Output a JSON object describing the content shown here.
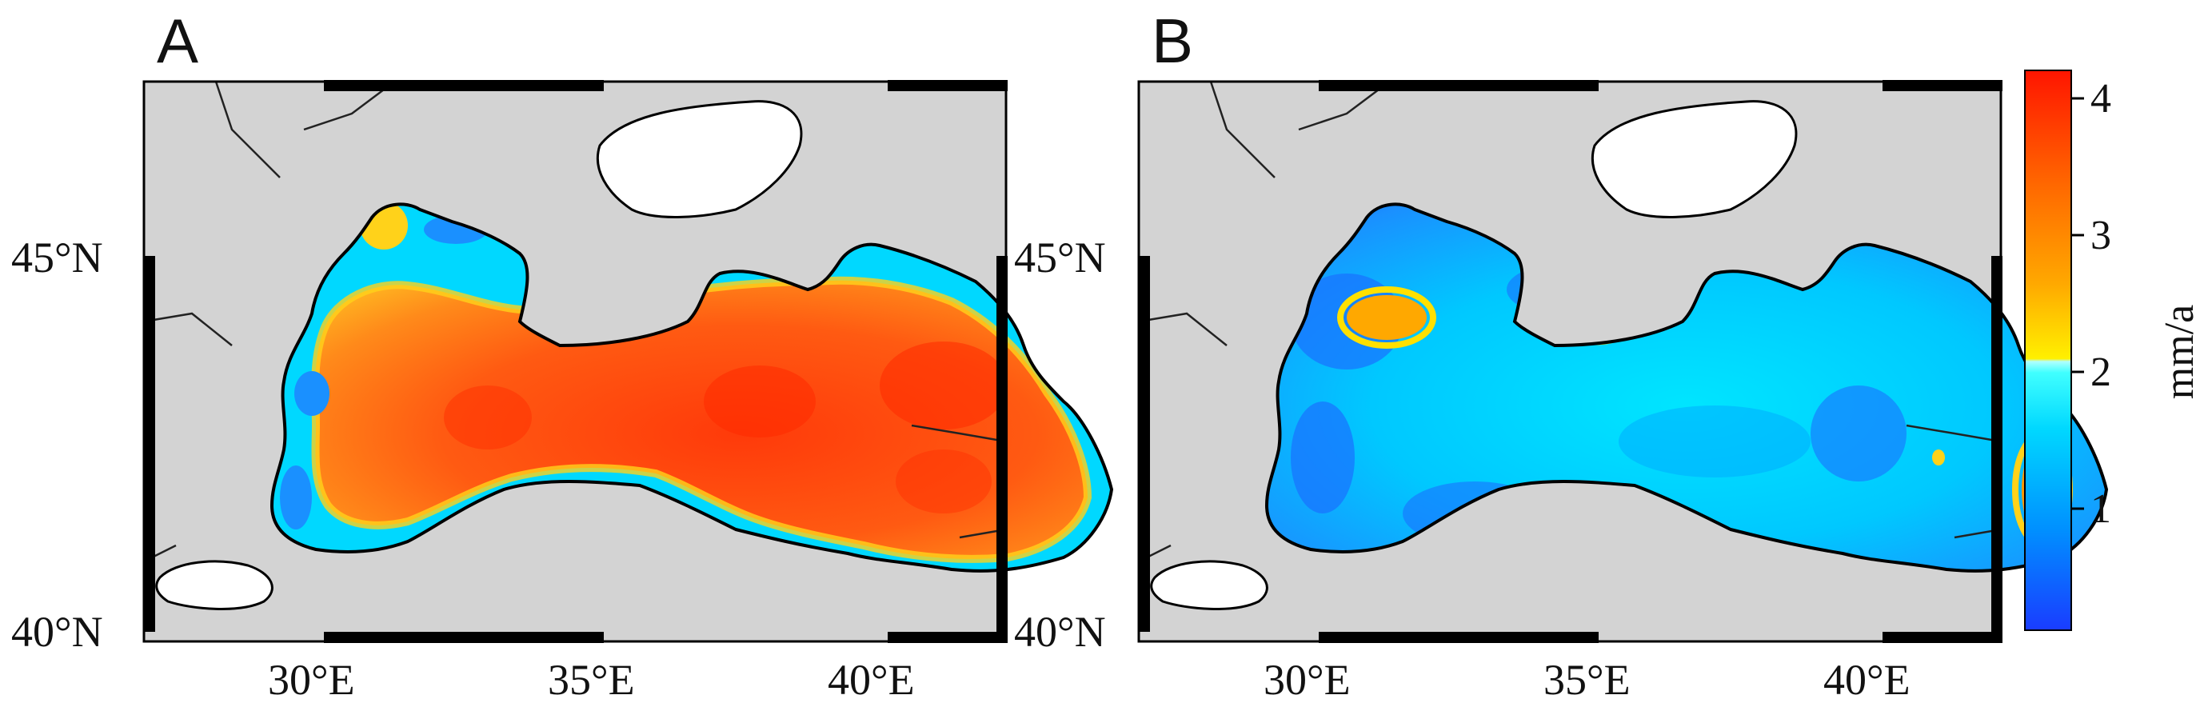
{
  "panels": [
    {
      "letter": "A",
      "x_ticks": [
        "30°E",
        "35°E",
        "40°E"
      ],
      "y_ticks": [
        "45°N",
        "40°N"
      ],
      "sea_fill": "warm-orange"
    },
    {
      "letter": "B",
      "x_ticks": [
        "30°E",
        "35°E",
        "40°E"
      ],
      "y_ticks": [
        "45°N",
        "40°N"
      ],
      "sea_fill": "cyan-blue"
    }
  ],
  "colorbar": {
    "unit": "mm/a",
    "ticks": [
      "1",
      "2",
      "3",
      "4"
    ],
    "range": [
      0.1,
      4.2
    ],
    "colors": [
      "#1a5cff",
      "#00aaff",
      "#00e6ff",
      "#80ffff",
      "#ffe000",
      "#ff9a00",
      "#ff5000",
      "#ff1a00"
    ]
  },
  "map_colors": {
    "land": "#d3d3d3",
    "island_land": "#ffffff",
    "coast": "#000000"
  }
}
